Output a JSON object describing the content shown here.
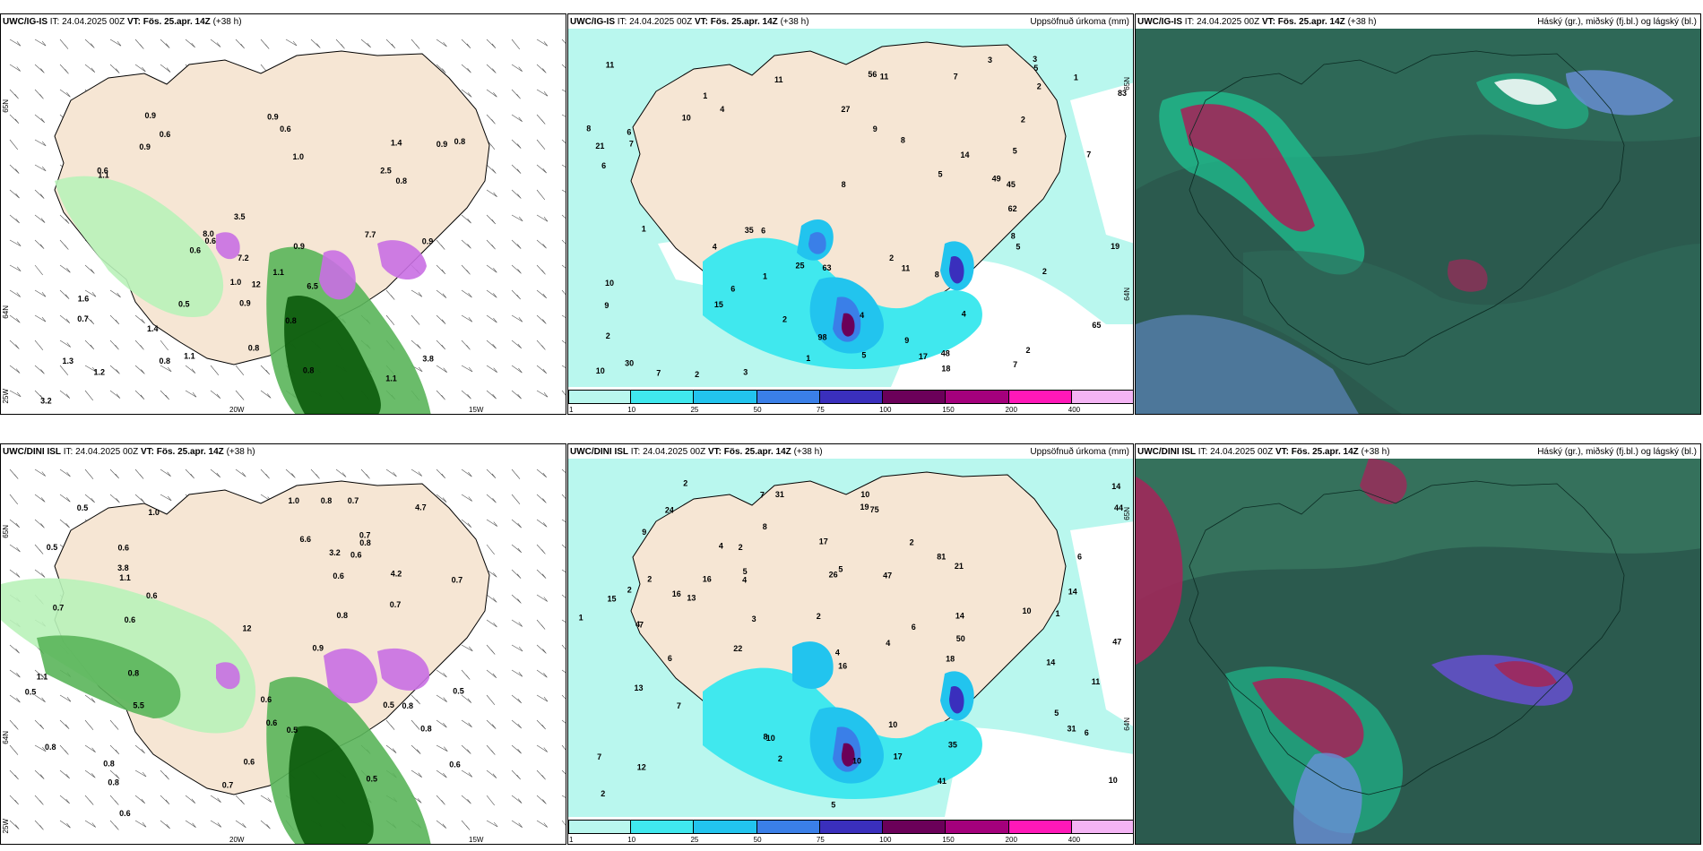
{
  "colors": {
    "land": "#f6e6d4",
    "ocean_white": "#ffffff",
    "precip_light": "#b9f7ee",
    "precip_10": "#40e8ee",
    "precip_25": "#22c4ee",
    "precip_50": "#3a7fe8",
    "precip_75": "#3a2fbd",
    "precip_100": "#6b0059",
    "precip_150": "#a4007c",
    "precip_200": "#ff18b8",
    "precip_400": "#f4b4f4",
    "wind_green_light": "#b9f2b9",
    "wind_green_mid": "#5ab55a",
    "wind_green_dark": "#0b5a0b",
    "wind_purple": "#c96fe3",
    "cloud_dark": "#2b5a4e",
    "cloud_teal": "#1ccf9a",
    "cloud_red": "#a0285a"
  },
  "panels": [
    {
      "id": "wind-ig",
      "model": "UWC/IG-IS",
      "it_label": "IT:",
      "it_value": "24.04.2025 00Z",
      "vt_label": "VT:",
      "vt_value": "Fös. 25.apr. 14Z",
      "lead": "(+38 h)",
      "right_title": "",
      "icon": "wind-barb-map",
      "coords": [
        "65N",
        "64N",
        "25W",
        "20W",
        "15W"
      ],
      "labels": [
        "0.9",
        "0.9",
        "0.6",
        "1.1",
        "0.7",
        "1.1",
        "0.9",
        "0.8",
        "0.5",
        "0.9",
        "2.5",
        "0.6",
        "0.6",
        "0.8",
        "1.1",
        "0.6",
        "1.2",
        "0.8",
        "0.9",
        "0.8",
        "1.6",
        "8.0",
        "7.7",
        "3.5",
        "1.0",
        "3.8",
        "1.4",
        "1.3",
        "0.6",
        "1.4",
        "1.1",
        "0.9",
        "0.8",
        "0.9",
        "0.8",
        "1.0",
        "12",
        "3.2",
        "7.2",
        "6.5"
      ]
    },
    {
      "id": "precip-ig",
      "model": "UWC/IG-IS",
      "it_label": "IT:",
      "it_value": "24.04.2025 00Z",
      "vt_label": "VT:",
      "vt_value": "Fös. 25.apr. 14Z",
      "lead": "(+38 h)",
      "right_title": "Uppsöfnuð úrkoma (mm)",
      "icon": "precip-map",
      "coords": [
        "65N",
        "64N"
      ],
      "labels": [
        "3",
        "9",
        "9",
        "7",
        "11",
        "6",
        "4",
        "5",
        "2",
        "1",
        "2",
        "6",
        "5",
        "4",
        "5",
        "7",
        "10",
        "8",
        "3",
        "8",
        "9",
        "5",
        "11",
        "27",
        "6",
        "17",
        "15",
        "8",
        "7",
        "48",
        "45",
        "49",
        "30",
        "56",
        "19",
        "2",
        "10",
        "6",
        "2",
        "8",
        "25",
        "11",
        "14",
        "4",
        "35",
        "5",
        "83",
        "18",
        "98",
        "65",
        "21",
        "62",
        "63",
        "4",
        "1",
        "2",
        "2",
        "7",
        "1",
        "2",
        "8",
        "11",
        "10",
        "1",
        "2",
        "1",
        "3",
        "7"
      ],
      "colorbar": [
        "1",
        "10",
        "25",
        "50",
        "75",
        "100",
        "150",
        "200",
        "400"
      ]
    },
    {
      "id": "cloud-ig",
      "model": "UWC/IG-IS",
      "it_label": "IT:",
      "it_value": "24.04.2025 00Z",
      "vt_label": "VT:",
      "vt_value": "Fös. 25.apr. 14Z",
      "lead": "(+38 h)",
      "right_title": "Háský (gr.), miðský (fj.bl.) og lágský (bl.)",
      "icon": "cloud-map"
    },
    {
      "id": "wind-dini",
      "model": "UWC/DINI ISL",
      "it_label": "IT:",
      "it_value": "24.04.2025 00Z",
      "vt_label": "VT:",
      "vt_value": "Fös. 25.apr. 14Z",
      "lead": "(+38 h)",
      "right_title": "",
      "icon": "wind-barb-map",
      "coords": [
        "65N",
        "64N",
        "25W",
        "20W",
        "15W"
      ],
      "labels": [
        "0.8",
        "0.6",
        "0.6",
        "0.6",
        "0.8",
        "0.8",
        "0.6",
        "0.5",
        "0.5",
        "0.6",
        "0.5",
        "0.6",
        "0.7",
        "0.7",
        "1.1",
        "0.6",
        "0.5",
        "0.6",
        "0.8",
        "1.0",
        "0.6",
        "0.5",
        "0.8",
        "0.7",
        "0.8",
        "0.6",
        "1.1",
        "0.7",
        "0.8",
        "0.7",
        "0.9",
        "1.0",
        "0.5",
        "4.7",
        "5.5",
        "3.2",
        "0.8",
        "0.5",
        "4.2",
        "6.6",
        "3.8",
        "12",
        "0.7",
        "0.8"
      ]
    },
    {
      "id": "precip-dini",
      "model": "UWC/DINI ISL",
      "it_label": "IT:",
      "it_value": "24.04.2025 00Z",
      "vt_label": "VT:",
      "vt_value": "Fös. 25.apr. 14Z",
      "lead": "(+38 h)",
      "right_title": "Uppsöfnuð úrkoma (mm)",
      "icon": "precip-map",
      "coords": [
        "65N",
        "64N"
      ],
      "labels": [
        "3",
        "11",
        "13",
        "9",
        "5",
        "10",
        "5",
        "8",
        "2",
        "21",
        "14",
        "10",
        "2",
        "2",
        "10",
        "7",
        "13",
        "26",
        "14",
        "14",
        "10",
        "15",
        "16",
        "44",
        "35",
        "47",
        "16",
        "7",
        "17",
        "17",
        "14",
        "31",
        "31",
        "24",
        "18",
        "6",
        "5",
        "12",
        "10",
        "81",
        "75",
        "41",
        "47",
        "22",
        "19",
        "8",
        "50",
        "16",
        "7",
        "2",
        "5",
        "1",
        "10",
        "7",
        "2",
        "2",
        "4",
        "6",
        "4",
        "1",
        "4",
        "4",
        "4",
        "6",
        "6",
        "2",
        "2"
      ],
      "colorbar": [
        "1",
        "10",
        "25",
        "50",
        "75",
        "100",
        "150",
        "200",
        "400"
      ]
    },
    {
      "id": "cloud-dini",
      "model": "UWC/DINI ISL",
      "it_label": "IT:",
      "it_value": "24.04.2025 00Z",
      "vt_label": "VT:",
      "vt_value": "Fös. 25.apr. 14Z",
      "lead": "(+38 h)",
      "right_title": "Háský (gr.), miðský (fj.bl.) og lágský (bl.)",
      "icon": "cloud-map"
    }
  ]
}
